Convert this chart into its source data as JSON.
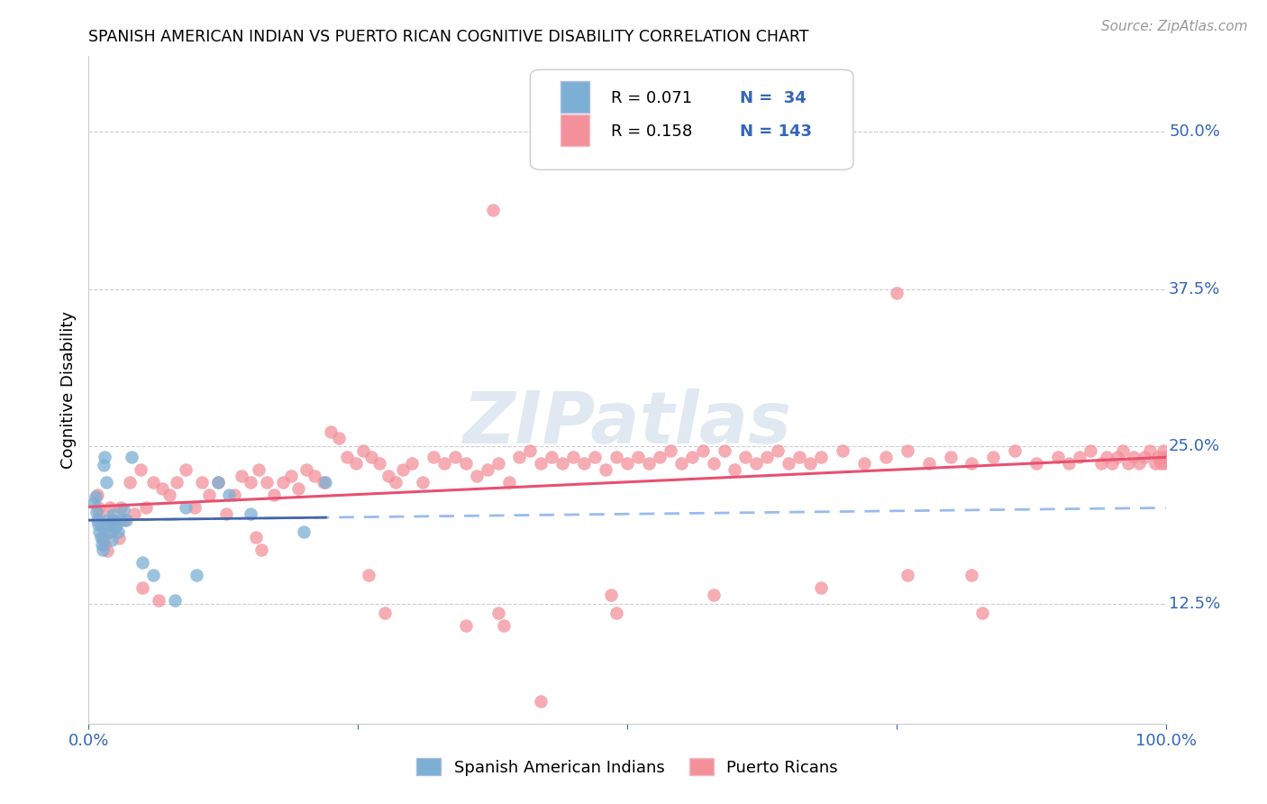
{
  "title": "SPANISH AMERICAN INDIAN VS PUERTO RICAN COGNITIVE DISABILITY CORRELATION CHART",
  "source": "Source: ZipAtlas.com",
  "ylabel": "Cognitive Disability",
  "ytick_labels": [
    "12.5%",
    "25.0%",
    "37.5%",
    "50.0%"
  ],
  "ytick_values": [
    0.125,
    0.25,
    0.375,
    0.5
  ],
  "xlim": [
    0.0,
    1.0
  ],
  "ylim": [
    0.03,
    0.56
  ],
  "legend_r1": "R = 0.071",
  "legend_n1": "N =  34",
  "legend_r2": "R = 0.158",
  "legend_n2": "N = 143",
  "color_blue": "#7BAFD4",
  "color_pink": "#F4909A",
  "color_blue_line_dash": "#99BBEE",
  "color_pink_line": "#E85070",
  "color_blue_solid": "#4466AA",
  "watermark": "ZIPatlas",
  "background_color": "#FFFFFF",
  "blue_x": [
    0.005,
    0.006,
    0.007,
    0.008,
    0.009,
    0.01,
    0.011,
    0.012,
    0.013,
    0.014,
    0.015,
    0.016,
    0.017,
    0.018,
    0.02,
    0.021,
    0.022,
    0.023,
    0.025,
    0.027,
    0.03,
    0.032,
    0.035,
    0.04,
    0.05,
    0.06,
    0.08,
    0.09,
    0.1,
    0.12,
    0.13,
    0.15,
    0.2,
    0.22
  ],
  "blue_y": [
    0.205,
    0.21,
    0.198,
    0.192,
    0.188,
    0.182,
    0.178,
    0.172,
    0.168,
    0.235,
    0.242,
    0.222,
    0.192,
    0.187,
    0.182,
    0.176,
    0.196,
    0.191,
    0.186,
    0.182,
    0.192,
    0.2,
    0.192,
    0.242,
    0.158,
    0.148,
    0.128,
    0.202,
    0.148,
    0.222,
    0.212,
    0.197,
    0.182,
    0.222
  ],
  "pink_x": [
    0.008,
    0.009,
    0.01,
    0.012,
    0.013,
    0.015,
    0.017,
    0.019,
    0.02,
    0.022,
    0.025,
    0.028,
    0.03,
    0.033,
    0.038,
    0.042,
    0.048,
    0.053,
    0.06,
    0.068,
    0.075,
    0.082,
    0.09,
    0.098,
    0.105,
    0.112,
    0.12,
    0.128,
    0.135,
    0.142,
    0.15,
    0.158,
    0.165,
    0.172,
    0.18,
    0.188,
    0.195,
    0.202,
    0.21,
    0.218,
    0.225,
    0.232,
    0.24,
    0.248,
    0.255,
    0.262,
    0.27,
    0.278,
    0.285,
    0.292,
    0.3,
    0.31,
    0.32,
    0.33,
    0.34,
    0.35,
    0.36,
    0.37,
    0.38,
    0.39,
    0.4,
    0.41,
    0.42,
    0.43,
    0.44,
    0.45,
    0.46,
    0.47,
    0.48,
    0.49,
    0.5,
    0.51,
    0.52,
    0.53,
    0.54,
    0.55,
    0.56,
    0.57,
    0.58,
    0.59,
    0.6,
    0.61,
    0.62,
    0.63,
    0.64,
    0.65,
    0.66,
    0.67,
    0.68,
    0.7,
    0.72,
    0.74,
    0.76,
    0.78,
    0.8,
    0.82,
    0.84,
    0.86,
    0.88,
    0.9,
    0.91,
    0.92,
    0.93,
    0.94,
    0.945,
    0.95,
    0.955,
    0.96,
    0.965,
    0.97,
    0.975,
    0.98,
    0.985,
    0.99,
    0.993,
    0.995,
    0.997,
    0.998,
    0.999,
    1.0,
    0.485,
    0.49,
    0.38,
    0.385,
    0.155,
    0.16,
    0.375,
    0.75,
    0.58,
    0.82,
    0.83,
    0.68,
    0.76,
    0.35,
    0.42,
    0.05,
    0.065,
    0.26,
    0.275
  ],
  "pink_y": [
    0.212,
    0.202,
    0.197,
    0.187,
    0.177,
    0.172,
    0.167,
    0.182,
    0.202,
    0.192,
    0.187,
    0.177,
    0.202,
    0.192,
    0.222,
    0.197,
    0.232,
    0.202,
    0.222,
    0.217,
    0.212,
    0.222,
    0.232,
    0.202,
    0.222,
    0.212,
    0.222,
    0.197,
    0.212,
    0.227,
    0.222,
    0.232,
    0.222,
    0.212,
    0.222,
    0.227,
    0.217,
    0.232,
    0.227,
    0.222,
    0.262,
    0.257,
    0.242,
    0.237,
    0.247,
    0.242,
    0.237,
    0.227,
    0.222,
    0.232,
    0.237,
    0.222,
    0.242,
    0.237,
    0.242,
    0.237,
    0.227,
    0.232,
    0.237,
    0.222,
    0.242,
    0.247,
    0.237,
    0.242,
    0.237,
    0.242,
    0.237,
    0.242,
    0.232,
    0.242,
    0.237,
    0.242,
    0.237,
    0.242,
    0.247,
    0.237,
    0.242,
    0.247,
    0.237,
    0.247,
    0.232,
    0.242,
    0.237,
    0.242,
    0.247,
    0.237,
    0.242,
    0.237,
    0.242,
    0.247,
    0.237,
    0.242,
    0.247,
    0.237,
    0.242,
    0.237,
    0.242,
    0.247,
    0.237,
    0.242,
    0.237,
    0.242,
    0.247,
    0.237,
    0.242,
    0.237,
    0.242,
    0.247,
    0.237,
    0.242,
    0.237,
    0.242,
    0.247,
    0.237,
    0.242,
    0.237,
    0.242,
    0.247,
    0.237,
    0.242,
    0.132,
    0.118,
    0.118,
    0.108,
    0.178,
    0.168,
    0.438,
    0.372,
    0.132,
    0.148,
    0.118,
    0.138,
    0.148,
    0.108,
    0.048,
    0.138,
    0.128,
    0.148,
    0.118
  ]
}
